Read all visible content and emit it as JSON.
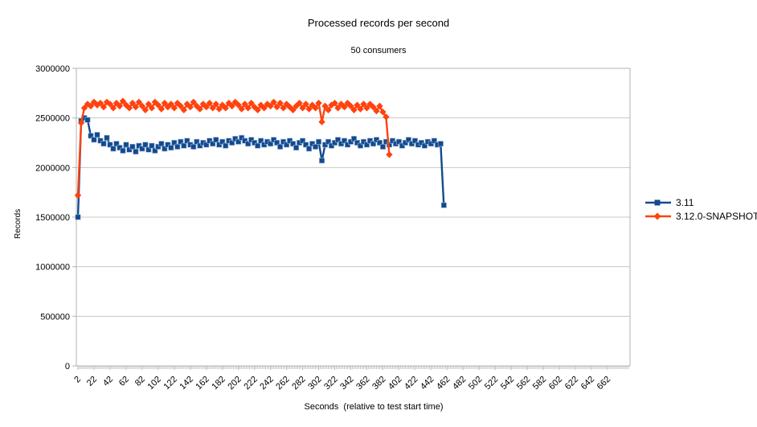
{
  "window": {
    "background": "#ffffff"
  },
  "header": {
    "title": "Processed records per second",
    "subtitle": "50 consumers"
  },
  "axes": {
    "y_title": "Records",
    "x_title": "Seconds  (relative to test start time)"
  },
  "legend": {
    "position": "right",
    "items": [
      {
        "label": "3.11",
        "color": "#134a8e",
        "marker": "square"
      },
      {
        "label": "3.12.0-SNAPSHOT",
        "color": "#ff420e",
        "marker": "diamond"
      }
    ]
  },
  "colors": {
    "grid": "#c8c8c8",
    "axis": "#b3b3b3",
    "text": "#000000",
    "series1": "#134a8e",
    "series2": "#ff420e"
  },
  "chart_data": {
    "type": "line",
    "title": "Processed records per second",
    "subtitle": "50 consumers",
    "xlabel": "Seconds  (relative to test start time)",
    "ylabel": "Records",
    "ylim": [
      0,
      3000000
    ],
    "xlim": [
      0,
      690
    ],
    "grid": "horizontal",
    "legend_position": "right",
    "y_ticks": [
      0,
      500000,
      1000000,
      1500000,
      2000000,
      2500000,
      3000000
    ],
    "x_tick_labels": [
      2,
      22,
      42,
      62,
      82,
      102,
      122,
      142,
      162,
      182,
      202,
      222,
      242,
      262,
      282,
      302,
      322,
      342,
      362,
      382,
      402,
      422,
      442,
      462,
      482,
      502,
      522,
      542,
      562,
      582,
      602,
      622,
      642,
      662
    ],
    "x_minor_tick_start": 2,
    "x_minor_tick_end": 688,
    "x_minor_tick_step": 2,
    "series": [
      {
        "name": "3.11",
        "color": "#134a8e",
        "marker": "square",
        "x_start": 2,
        "x_step": 4,
        "values": [
          1500000,
          2470000,
          2500000,
          2480000,
          2320000,
          2280000,
          2330000,
          2270000,
          2240000,
          2300000,
          2230000,
          2190000,
          2240000,
          2200000,
          2170000,
          2230000,
          2180000,
          2210000,
          2160000,
          2220000,
          2190000,
          2230000,
          2180000,
          2220000,
          2170000,
          2210000,
          2240000,
          2190000,
          2230000,
          2200000,
          2250000,
          2210000,
          2260000,
          2220000,
          2270000,
          2230000,
          2210000,
          2260000,
          2220000,
          2250000,
          2230000,
          2270000,
          2240000,
          2280000,
          2230000,
          2260000,
          2220000,
          2270000,
          2250000,
          2290000,
          2260000,
          2300000,
          2270000,
          2240000,
          2280000,
          2250000,
          2220000,
          2270000,
          2230000,
          2260000,
          2240000,
          2280000,
          2250000,
          2210000,
          2260000,
          2230000,
          2270000,
          2240000,
          2200000,
          2250000,
          2270000,
          2230000,
          2190000,
          2240000,
          2210000,
          2260000,
          2070000,
          2230000,
          2260000,
          2220000,
          2250000,
          2280000,
          2240000,
          2270000,
          2230000,
          2260000,
          2290000,
          2250000,
          2220000,
          2260000,
          2230000,
          2270000,
          2240000,
          2280000,
          2250000,
          2210000,
          2260000,
          2230000,
          2270000,
          2240000,
          2260000,
          2220000,
          2250000,
          2280000,
          2240000,
          2270000,
          2230000,
          2250000,
          2220000,
          2260000,
          2240000,
          2270000,
          2230000,
          2240000,
          1620000
        ]
      },
      {
        "name": "3.12.0-SNAPSHOT",
        "color": "#ff420e",
        "marker": "diamond",
        "x_start": 2,
        "x_step": 4,
        "values": [
          1720000,
          2450000,
          2600000,
          2640000,
          2620000,
          2660000,
          2630000,
          2650000,
          2610000,
          2660000,
          2640000,
          2600000,
          2650000,
          2620000,
          2670000,
          2630000,
          2600000,
          2650000,
          2610000,
          2660000,
          2620000,
          2580000,
          2640000,
          2600000,
          2660000,
          2630000,
          2590000,
          2650000,
          2610000,
          2640000,
          2600000,
          2650000,
          2620000,
          2580000,
          2640000,
          2610000,
          2660000,
          2620000,
          2590000,
          2640000,
          2610000,
          2650000,
          2600000,
          2640000,
          2590000,
          2630000,
          2600000,
          2650000,
          2620000,
          2660000,
          2630000,
          2590000,
          2640000,
          2600000,
          2650000,
          2610000,
          2580000,
          2630000,
          2600000,
          2640000,
          2620000,
          2660000,
          2610000,
          2650000,
          2600000,
          2640000,
          2610000,
          2580000,
          2620000,
          2650000,
          2600000,
          2640000,
          2590000,
          2630000,
          2600000,
          2650000,
          2460000,
          2620000,
          2580000,
          2630000,
          2650000,
          2600000,
          2640000,
          2610000,
          2650000,
          2620000,
          2580000,
          2630000,
          2590000,
          2640000,
          2600000,
          2640000,
          2610000,
          2570000,
          2620000,
          2560000,
          2510000,
          2130000
        ]
      }
    ]
  }
}
